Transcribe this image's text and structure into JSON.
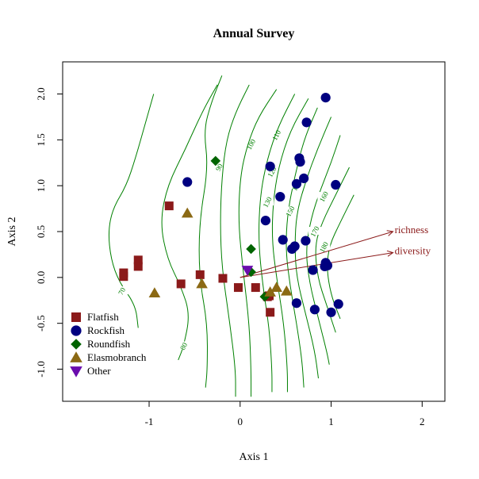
{
  "chart_data": {
    "type": "scatter",
    "title": "Annual Survey",
    "xlabel": "Axis 1",
    "ylabel": "Axis 2",
    "xlim": [
      -1.95,
      2.25
    ],
    "ylim": [
      -1.35,
      2.35
    ],
    "xticks": [
      -1,
      0,
      1,
      2
    ],
    "yticks": [
      -1.0,
      -0.5,
      0.0,
      0.5,
      1.0,
      1.5,
      2.0
    ],
    "xtick_labels": [
      "-1",
      "0",
      "1",
      "2"
    ],
    "ytick_labels": [
      "-1.0",
      "-0.5",
      "0.0",
      "0.5",
      "1.0",
      "1.5",
      "2.0"
    ],
    "legend_position": "bottom-left",
    "series": [
      {
        "name": "Flatfish",
        "shape": "square",
        "color": "#8B1A1A",
        "points": [
          [
            -1.28,
            0.05
          ],
          [
            -1.28,
            0.01
          ],
          [
            -1.12,
            0.19
          ],
          [
            -1.12,
            0.12
          ],
          [
            -0.78,
            0.78
          ],
          [
            -0.65,
            -0.07
          ],
          [
            -0.44,
            0.03
          ],
          [
            -0.19,
            -0.01
          ],
          [
            -0.02,
            -0.11
          ],
          [
            0.17,
            -0.11
          ],
          [
            0.3,
            -0.21
          ],
          [
            0.32,
            -0.2
          ],
          [
            0.33,
            -0.38
          ]
        ]
      },
      {
        "name": "Rockfish",
        "shape": "circle",
        "color": "#000080",
        "points": [
          [
            -0.58,
            1.04
          ],
          [
            0.28,
            0.62
          ],
          [
            0.33,
            1.21
          ],
          [
            0.44,
            0.88
          ],
          [
            0.47,
            0.41
          ],
          [
            0.57,
            0.31
          ],
          [
            0.6,
            0.34
          ],
          [
            0.62,
            1.02
          ],
          [
            0.65,
            1.3
          ],
          [
            0.66,
            1.26
          ],
          [
            0.7,
            1.08
          ],
          [
            0.72,
            0.4
          ],
          [
            0.73,
            1.69
          ],
          [
            0.8,
            0.08
          ],
          [
            0.62,
            -0.28
          ],
          [
            0.82,
            -0.35
          ],
          [
            0.93,
            0.12
          ],
          [
            0.94,
            1.96
          ],
          [
            0.94,
            0.16
          ],
          [
            0.96,
            0.13
          ],
          [
            1.0,
            -0.38
          ],
          [
            1.05,
            1.01
          ],
          [
            1.08,
            -0.29
          ]
        ]
      },
      {
        "name": "Roundfish",
        "shape": "diamond",
        "color": "#006400",
        "points": [
          [
            -0.27,
            1.27
          ],
          [
            0.12,
            0.31
          ],
          [
            0.12,
            0.06
          ],
          [
            0.27,
            -0.21
          ]
        ]
      },
      {
        "name": "Elasmobranch",
        "shape": "triangle",
        "color": "#8B6914",
        "points": [
          [
            -0.94,
            -0.17
          ],
          [
            -0.58,
            0.7
          ],
          [
            -0.42,
            -0.07
          ],
          [
            0.33,
            -0.16
          ],
          [
            0.4,
            -0.11
          ],
          [
            0.51,
            -0.15
          ]
        ]
      },
      {
        "name": "Other",
        "shape": "triangle-down",
        "color": "#6A0DAD",
        "points": [
          [
            0.08,
            0.08
          ]
        ]
      }
    ],
    "vectors": [
      {
        "label": "richness",
        "from": [
          0.0,
          0.0
        ],
        "to": [
          1.68,
          0.5
        ]
      },
      {
        "label": "diversity",
        "from": [
          0.0,
          0.0
        ],
        "to": [
          1.68,
          0.27
        ]
      }
    ],
    "contours": [
      {
        "level": "70",
        "label_at": [
          -1.3,
          -0.15
        ],
        "points": [
          [
            -0.95,
            2.0
          ],
          [
            -1.05,
            1.65
          ],
          [
            -1.15,
            1.3
          ],
          [
            -1.25,
            1.0
          ],
          [
            -1.4,
            0.75
          ],
          [
            -1.45,
            0.5
          ],
          [
            -1.42,
            0.2
          ],
          [
            -1.33,
            -0.05
          ],
          [
            -1.15,
            -0.3
          ],
          [
            -1.12,
            -0.55
          ]
        ]
      },
      {
        "level": "80",
        "label_at": [
          -0.62,
          -0.75
        ],
        "points": [
          [
            -0.25,
            2.1
          ],
          [
            -0.42,
            1.8
          ],
          [
            -0.6,
            1.4
          ],
          [
            -0.8,
            1.0
          ],
          [
            -0.88,
            0.6
          ],
          [
            -0.8,
            0.2
          ],
          [
            -0.65,
            -0.1
          ],
          [
            -0.55,
            -0.4
          ],
          [
            -0.62,
            -0.75
          ],
          [
            -0.68,
            -0.9
          ]
        ]
      },
      {
        "level": "90",
        "label_at": [
          -0.23,
          1.2
        ],
        "points": [
          [
            -0.2,
            2.2
          ],
          [
            -0.32,
            1.9
          ],
          [
            -0.4,
            1.6
          ],
          [
            -0.35,
            1.2
          ],
          [
            -0.45,
            0.6
          ],
          [
            -0.45,
            0.0
          ],
          [
            -0.36,
            -0.5
          ],
          [
            -0.36,
            -1.0
          ],
          [
            -0.38,
            -1.2
          ]
        ]
      },
      {
        "level": "100",
        "label_at": [
          0.12,
          1.45
        ],
        "points": [
          [
            0.1,
            2.1
          ],
          [
            -0.05,
            1.8
          ],
          [
            -0.15,
            1.5
          ],
          [
            -0.2,
            1.1
          ],
          [
            -0.22,
            0.6
          ],
          [
            -0.2,
            0.1
          ],
          [
            -0.12,
            -0.45
          ],
          [
            -0.05,
            -1.0
          ],
          [
            -0.05,
            -1.3
          ]
        ]
      },
      {
        "level": "110",
        "label_at": [
          0.4,
          1.55
        ],
        "points": [
          [
            0.4,
            2.05
          ],
          [
            0.2,
            1.75
          ],
          [
            0.08,
            1.45
          ],
          [
            0.0,
            1.1
          ],
          [
            -0.02,
            0.6
          ],
          [
            0.03,
            0.1
          ],
          [
            0.1,
            -0.5
          ],
          [
            0.12,
            -1.0
          ],
          [
            0.12,
            -1.3
          ]
        ]
      },
      {
        "level": "120",
        "label_at": [
          0.35,
          1.15
        ],
        "points": [
          [
            0.6,
            2.0
          ],
          [
            0.42,
            1.65
          ],
          [
            0.3,
            1.3
          ],
          [
            0.22,
            0.9
          ],
          [
            0.2,
            0.4
          ],
          [
            0.25,
            -0.1
          ],
          [
            0.32,
            -0.55
          ],
          [
            0.35,
            -1.0
          ],
          [
            0.35,
            -1.25
          ]
        ]
      },
      {
        "level": "130",
        "label_at": [
          0.3,
          0.82
        ],
        "points": [
          [
            0.75,
            1.95
          ],
          [
            0.55,
            1.6
          ],
          [
            0.42,
            1.2
          ],
          [
            0.36,
            0.8
          ],
          [
            0.35,
            0.4
          ],
          [
            0.4,
            0.0
          ],
          [
            0.48,
            -0.5
          ],
          [
            0.52,
            -1.0
          ],
          [
            0.52,
            -1.25
          ]
        ]
      },
      {
        "level": "140",
        "label_at": [
          0.62,
          1.0
        ],
        "points": [
          [
            0.85,
            1.85
          ],
          [
            0.7,
            1.5
          ],
          [
            0.6,
            1.1
          ],
          [
            0.52,
            0.7
          ],
          [
            0.5,
            0.3
          ],
          [
            0.55,
            -0.1
          ],
          [
            0.62,
            -0.5
          ],
          [
            0.68,
            -0.9
          ],
          [
            0.7,
            -1.2
          ]
        ]
      },
      {
        "level": "150",
        "label_at": [
          0.55,
          0.72
        ],
        "points": [
          [
            1.0,
            1.75
          ],
          [
            0.85,
            1.4
          ],
          [
            0.72,
            1.05
          ],
          [
            0.62,
            0.7
          ],
          [
            0.6,
            0.35
          ],
          [
            0.62,
            0.0
          ],
          [
            0.72,
            -0.4
          ],
          [
            0.82,
            -0.8
          ],
          [
            0.86,
            -1.1
          ]
        ]
      },
      {
        "level": "160",
        "label_at": [
          0.92,
          0.88
        ],
        "points": [
          [
            1.1,
            1.55
          ],
          [
            1.0,
            1.25
          ],
          [
            0.88,
            0.95
          ],
          [
            0.78,
            0.65
          ],
          [
            0.72,
            0.3
          ],
          [
            0.76,
            -0.05
          ],
          [
            0.86,
            -0.45
          ],
          [
            0.95,
            -0.8
          ],
          [
            0.98,
            -0.95
          ]
        ]
      },
      {
        "level": "170",
        "label_at": [
          0.82,
          0.5
        ],
        "points": [
          [
            1.2,
            1.2
          ],
          [
            1.05,
            0.9
          ],
          [
            0.9,
            0.6
          ],
          [
            0.82,
            0.35
          ],
          [
            0.85,
            0.0
          ],
          [
            0.95,
            -0.3
          ],
          [
            1.05,
            -0.6
          ]
        ]
      },
      {
        "level": "180",
        "label_at": [
          0.92,
          0.33
        ],
        "points": [
          [
            1.25,
            0.9
          ],
          [
            1.1,
            0.6
          ],
          [
            0.98,
            0.35
          ],
          [
            0.95,
            0.1
          ],
          [
            1.0,
            -0.2
          ],
          [
            1.1,
            -0.45
          ]
        ]
      }
    ]
  }
}
